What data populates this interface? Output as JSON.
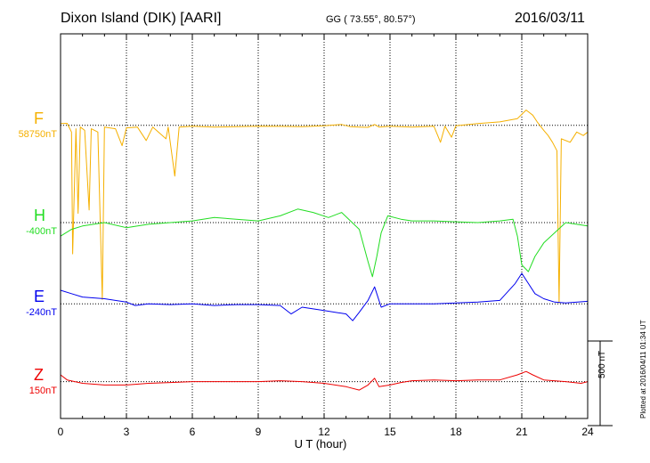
{
  "header": {
    "station": "Dixon Island (DIK)  [AARI]",
    "coords": "GG ( 73.55°,  80.57°)",
    "date": "2016/03/11"
  },
  "footer": {
    "scale": "500 nT",
    "plotted": "Plotted at 2016/04/11 01:34 UT"
  },
  "chart_data": {
    "type": "line",
    "title": "Dixon Island (DIK)  [AARI]",
    "xlabel": "U T (hour)",
    "ylabel": "",
    "xlim": [
      0,
      24
    ],
    "xticks": [
      "0",
      "3",
      "6",
      "9",
      "12",
      "15",
      "18",
      "21",
      "24"
    ],
    "grid": true,
    "scale_bar_nT": 500,
    "series": [
      {
        "name": "F",
        "baseline": "58750nT",
        "color": "#f5b000",
        "offset_nT": 1275,
        "points": [
          [
            0,
            10
          ],
          [
            0.3,
            12
          ],
          [
            0.5,
            -40
          ],
          [
            0.55,
            -760
          ],
          [
            0.7,
            -20
          ],
          [
            0.8,
            -520
          ],
          [
            0.9,
            -10
          ],
          [
            1.1,
            -30
          ],
          [
            1.3,
            -500
          ],
          [
            1.4,
            -20
          ],
          [
            1.7,
            -40
          ],
          [
            1.9,
            -1030
          ],
          [
            2.0,
            -10
          ],
          [
            2.5,
            -20
          ],
          [
            2.8,
            -120
          ],
          [
            3.0,
            -15
          ],
          [
            3.5,
            -10
          ],
          [
            3.9,
            -90
          ],
          [
            4.2,
            -10
          ],
          [
            4.8,
            -80
          ],
          [
            4.9,
            -10
          ],
          [
            5.2,
            -300
          ],
          [
            5.4,
            -10
          ],
          [
            6.0,
            -5
          ],
          [
            7.0,
            -10
          ],
          [
            8.0,
            -8
          ],
          [
            9.0,
            -5
          ],
          [
            10.0,
            -6
          ],
          [
            11.0,
            -8
          ],
          [
            12.0,
            -3
          ],
          [
            12.8,
            5
          ],
          [
            13.2,
            -8
          ],
          [
            13.6,
            -10
          ],
          [
            14.0,
            -12
          ],
          [
            14.3,
            5
          ],
          [
            14.5,
            -10
          ],
          [
            15.0,
            -5
          ],
          [
            15.5,
            -8
          ],
          [
            16.0,
            -10
          ],
          [
            17.0,
            -5
          ],
          [
            17.3,
            -100
          ],
          [
            17.5,
            -5
          ],
          [
            17.8,
            -70
          ],
          [
            18.0,
            -3
          ],
          [
            19.0,
            10
          ],
          [
            20.0,
            20
          ],
          [
            20.8,
            40
          ],
          [
            21.2,
            90
          ],
          [
            21.5,
            60
          ],
          [
            21.7,
            20
          ],
          [
            22.0,
            -30
          ],
          [
            22.2,
            -60
          ],
          [
            22.4,
            -100
          ],
          [
            22.6,
            -150
          ],
          [
            22.7,
            -1050
          ],
          [
            22.8,
            -80
          ],
          [
            23.2,
            -100
          ],
          [
            23.5,
            -40
          ],
          [
            23.8,
            -60
          ],
          [
            24.0,
            -40
          ]
        ]
      },
      {
        "name": "H",
        "baseline": "-400nT",
        "color": "#22dd22",
        "offset_nT": 700,
        "points": [
          [
            0,
            -80
          ],
          [
            0.5,
            -40
          ],
          [
            1,
            -20
          ],
          [
            2,
            0
          ],
          [
            3,
            -30
          ],
          [
            4,
            -10
          ],
          [
            5,
            0
          ],
          [
            6,
            10
          ],
          [
            7,
            30
          ],
          [
            8,
            20
          ],
          [
            9,
            10
          ],
          [
            10,
            40
          ],
          [
            10.8,
            80
          ],
          [
            11.5,
            60
          ],
          [
            12.2,
            30
          ],
          [
            12.8,
            60
          ],
          [
            13.2,
            10
          ],
          [
            13.6,
            -40
          ],
          [
            14.0,
            -230
          ],
          [
            14.2,
            -320
          ],
          [
            14.4,
            -200
          ],
          [
            14.6,
            -60
          ],
          [
            14.9,
            40
          ],
          [
            15.5,
            20
          ],
          [
            16,
            10
          ],
          [
            17,
            10
          ],
          [
            18,
            5
          ],
          [
            19,
            0
          ],
          [
            20,
            10
          ],
          [
            20.6,
            20
          ],
          [
            20.8,
            -80
          ],
          [
            21.0,
            -250
          ],
          [
            21.3,
            -290
          ],
          [
            21.6,
            -200
          ],
          [
            22,
            -120
          ],
          [
            22.5,
            -60
          ],
          [
            23,
            0
          ],
          [
            23.5,
            -10
          ],
          [
            24,
            -20
          ]
        ]
      },
      {
        "name": "E",
        "baseline": "-240nT",
        "color": "#0000ee",
        "offset_nT": 220,
        "points": [
          [
            0,
            80
          ],
          [
            0.5,
            60
          ],
          [
            1,
            40
          ],
          [
            2,
            30
          ],
          [
            3,
            10
          ],
          [
            3.4,
            -10
          ],
          [
            4,
            0
          ],
          [
            5,
            -5
          ],
          [
            6,
            0
          ],
          [
            7,
            -10
          ],
          [
            8,
            -5
          ],
          [
            9,
            -5
          ],
          [
            10,
            -10
          ],
          [
            10.5,
            -60
          ],
          [
            11,
            -20
          ],
          [
            12,
            -40
          ],
          [
            13,
            -60
          ],
          [
            13.3,
            -100
          ],
          [
            13.6,
            -50
          ],
          [
            14.0,
            20
          ],
          [
            14.3,
            100
          ],
          [
            14.6,
            -20
          ],
          [
            15,
            0
          ],
          [
            16,
            0
          ],
          [
            17,
            0
          ],
          [
            18,
            5
          ],
          [
            19,
            10
          ],
          [
            20,
            20
          ],
          [
            20.7,
            120
          ],
          [
            21.0,
            180
          ],
          [
            21.3,
            120
          ],
          [
            21.6,
            60
          ],
          [
            22,
            30
          ],
          [
            22.5,
            10
          ],
          [
            23,
            5
          ],
          [
            24,
            15
          ]
        ]
      },
      {
        "name": "Z",
        "baseline": "150nT",
        "color": "#ee0000",
        "offset_nT": -240,
        "points": [
          [
            0,
            40
          ],
          [
            0.3,
            10
          ],
          [
            1,
            -10
          ],
          [
            2,
            -20
          ],
          [
            3,
            -20
          ],
          [
            4,
            -10
          ],
          [
            5,
            -5
          ],
          [
            6,
            0
          ],
          [
            7,
            0
          ],
          [
            8,
            0
          ],
          [
            9,
            0
          ],
          [
            10,
            5
          ],
          [
            11,
            0
          ],
          [
            12,
            -10
          ],
          [
            13,
            -30
          ],
          [
            13.6,
            -50
          ],
          [
            14.0,
            -20
          ],
          [
            14.3,
            20
          ],
          [
            14.5,
            -30
          ],
          [
            15,
            -20
          ],
          [
            15.5,
            -5
          ],
          [
            16,
            5
          ],
          [
            17,
            10
          ],
          [
            18,
            5
          ],
          [
            19,
            10
          ],
          [
            20,
            10
          ],
          [
            20.8,
            40
          ],
          [
            21.2,
            60
          ],
          [
            21.5,
            40
          ],
          [
            22,
            10
          ],
          [
            23,
            0
          ],
          [
            23.7,
            -10
          ],
          [
            24,
            0
          ]
        ]
      }
    ]
  }
}
